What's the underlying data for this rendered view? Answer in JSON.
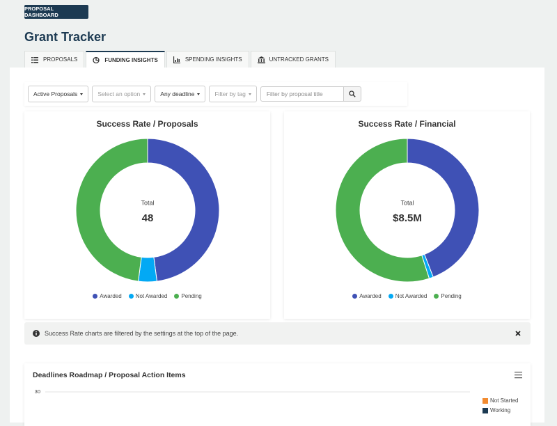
{
  "header": {
    "badge": "PROPOSAL DASHBOARD",
    "title": "Grant Tracker"
  },
  "tabs": [
    "PROPOSALS",
    "FUNDING INSIGHTS",
    "SPENDING INSIGHTS",
    "UNTRACKED GRANTS"
  ],
  "active_tab": 1,
  "filters": [
    "Active Proposals",
    "Select an option",
    "Any deadline",
    "Filter by tag"
  ],
  "search_placeholder": "Filter by proposal title",
  "notice": "Success Rate charts are filtered by the settings at the top of the page.",
  "chart_data": [
    {
      "type": "donut",
      "title": "Success Rate / Proposals",
      "center_label": "Total",
      "total": 48,
      "categories": [
        "Awarded",
        "Not Awarded",
        "Pending"
      ],
      "colors": [
        "#3f51b5",
        "#03a9f4",
        "#4caf50"
      ],
      "values": [
        23,
        2,
        23
      ]
    },
    {
      "type": "donut",
      "title": "Success Rate / Financial",
      "center_label": "Total",
      "total": 8.5,
      "total_label": "$8.5M",
      "categories": [
        "Awarded",
        "Not Awarded",
        "Pending"
      ],
      "colors": [
        "#3f51b5",
        "#03a9f4",
        "#4caf50"
      ],
      "values": [
        3.75,
        0.08,
        4.67
      ]
    },
    {
      "type": "bar",
      "title": "Deadlines Roadmap / Proposal Action Items",
      "yticks": [
        30
      ],
      "series": [
        {
          "name": "Not Started",
          "color": "#f28b30"
        },
        {
          "name": "Working",
          "color": "#1c3a52"
        }
      ]
    }
  ]
}
